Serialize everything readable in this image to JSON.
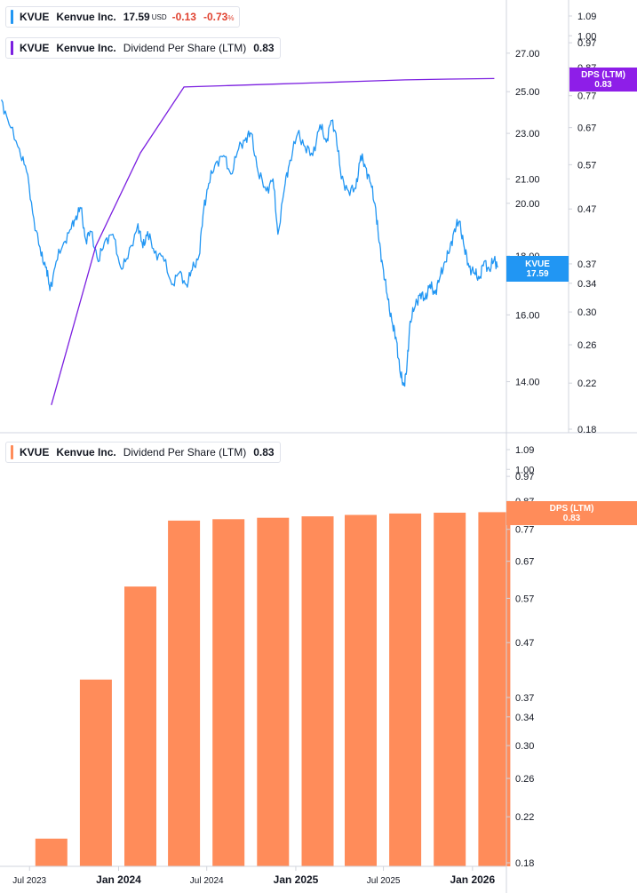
{
  "legend_top": {
    "ticker": "KVUE",
    "company": "Kenvue Inc.",
    "price": "17.59",
    "currency": "USD",
    "change": "-0.13",
    "change_pct": "-0.73",
    "pct_sign": "%",
    "color": "#2196f3"
  },
  "legend_dps_top": {
    "ticker": "KVUE",
    "company": "Kenvue Inc.",
    "metric": "Dividend Per Share (LTM)",
    "value": "0.83",
    "color": "#7b1fe0"
  },
  "legend_bottom": {
    "ticker": "KVUE",
    "company": "Kenvue Inc.",
    "metric": "Dividend Per Share (LTM)",
    "value": "0.83",
    "color": "#ff8c5a"
  },
  "price_tag": {
    "line1": "KVUE",
    "line2": "17.59",
    "color": "#2196f3"
  },
  "dps_tag_top": {
    "line1": "DPS (LTM)",
    "line2": "0.83",
    "color": "#8e1ee8"
  },
  "dps_tag_bottom": {
    "line1": "DPS (LTM)",
    "line2": "0.83",
    "color": "#ff8c5a"
  },
  "chart_data": [
    {
      "type": "line",
      "series": [
        {
          "name": "KVUE",
          "color": "#2196f3",
          "points": [
            [
              "2023-05-04",
              24.6
            ],
            [
              "2023-05-20",
              23.4
            ],
            [
              "2023-06-10",
              22.3
            ],
            [
              "2023-06-25",
              21.3
            ],
            [
              "2023-07-10",
              19.4
            ],
            [
              "2023-07-25",
              18.0
            ],
            [
              "2023-08-05",
              17.6
            ],
            [
              "2023-08-12",
              16.8
            ],
            [
              "2023-08-25",
              17.8
            ],
            [
              "2023-09-10",
              18.5
            ],
            [
              "2023-09-25",
              19.0
            ],
            [
              "2023-10-05",
              19.5
            ],
            [
              "2023-10-15",
              19.8
            ],
            [
              "2023-10-25",
              18.6
            ],
            [
              "2023-11-05",
              18.9
            ],
            [
              "2023-11-20",
              17.8
            ],
            [
              "2023-12-05",
              18.6
            ],
            [
              "2023-12-20",
              18.8
            ],
            [
              "2024-01-05",
              17.6
            ],
            [
              "2024-01-20",
              17.9
            ],
            [
              "2024-02-10",
              19.2
            ],
            [
              "2024-02-20",
              18.3
            ],
            [
              "2024-03-01",
              18.9
            ],
            [
              "2024-03-15",
              18.1
            ],
            [
              "2024-04-01",
              18.0
            ],
            [
              "2024-04-20",
              17.0
            ],
            [
              "2024-05-05",
              17.4
            ],
            [
              "2024-05-20",
              17.0
            ],
            [
              "2024-06-01",
              17.5
            ],
            [
              "2024-06-15",
              18.0
            ],
            [
              "2024-06-25",
              19.8
            ],
            [
              "2024-07-05",
              20.8
            ],
            [
              "2024-07-20",
              21.7
            ],
            [
              "2024-08-05",
              22.0
            ],
            [
              "2024-08-20",
              21.2
            ],
            [
              "2024-09-05",
              22.3
            ],
            [
              "2024-09-20",
              22.8
            ],
            [
              "2024-10-01",
              23.0
            ],
            [
              "2024-10-15",
              21.3
            ],
            [
              "2024-11-01",
              20.5
            ],
            [
              "2024-11-15",
              21.0
            ],
            [
              "2024-11-25",
              18.8
            ],
            [
              "2024-12-10",
              20.8
            ],
            [
              "2024-12-20",
              21.8
            ],
            [
              "2025-01-05",
              23.0
            ],
            [
              "2025-01-20",
              22.4
            ],
            [
              "2025-02-05",
              22.0
            ],
            [
              "2025-02-20",
              23.4
            ],
            [
              "2025-03-05",
              22.6
            ],
            [
              "2025-03-15",
              23.6
            ],
            [
              "2025-03-25",
              23.0
            ],
            [
              "2025-04-05",
              21.0
            ],
            [
              "2025-04-20",
              20.5
            ],
            [
              "2025-05-05",
              20.6
            ],
            [
              "2025-05-15",
              22.0
            ],
            [
              "2025-05-25",
              21.5
            ],
            [
              "2025-06-05",
              20.8
            ],
            [
              "2025-06-15",
              19.8
            ],
            [
              "2025-06-22",
              18.5
            ],
            [
              "2025-07-01",
              17.5
            ],
            [
              "2025-07-10",
              16.5
            ],
            [
              "2025-07-20",
              15.7
            ],
            [
              "2025-07-28",
              15.2
            ],
            [
              "2025-08-05",
              14.2
            ],
            [
              "2025-08-12",
              13.9
            ],
            [
              "2025-08-18",
              14.3
            ],
            [
              "2025-08-25",
              15.8
            ],
            [
              "2025-09-05",
              16.3
            ],
            [
              "2025-09-15",
              16.7
            ],
            [
              "2025-09-25",
              16.5
            ],
            [
              "2025-10-05",
              17.0
            ],
            [
              "2025-10-15",
              16.7
            ],
            [
              "2025-10-25",
              17.2
            ],
            [
              "2025-11-05",
              17.8
            ],
            [
              "2025-11-15",
              18.2
            ],
            [
              "2025-11-25",
              19.0
            ],
            [
              "2025-12-05",
              19.3
            ],
            [
              "2025-12-15",
              18.3
            ],
            [
              "2025-12-25",
              17.6
            ],
            [
              "2026-01-05",
              17.4
            ],
            [
              "2026-01-15",
              17.2
            ],
            [
              "2026-01-25",
              17.8
            ],
            [
              "2026-02-05",
              17.5
            ],
            [
              "2026-02-15",
              17.9
            ],
            [
              "2026-02-22",
              17.59
            ]
          ]
        },
        {
          "name": "Dividend Per Share (LTM)",
          "color": "#7b1fe0",
          "points": [
            [
              "2023-08-15",
              0.2
            ],
            [
              "2023-11-15",
              0.4
            ],
            [
              "2024-02-15",
              0.6
            ],
            [
              "2024-05-15",
              0.8
            ],
            [
              "2024-08-15",
              0.805
            ],
            [
              "2024-11-15",
              0.81
            ],
            [
              "2025-02-15",
              0.815
            ],
            [
              "2025-05-15",
              0.82
            ],
            [
              "2025-08-15",
              0.825
            ],
            [
              "2025-11-15",
              0.828
            ],
            [
              "2026-02-15",
              0.83
            ]
          ]
        }
      ],
      "y_axis_price": {
        "ticks": [
          "27.00",
          "25.00",
          "23.00",
          "21.00",
          "20.00",
          "18.00",
          "16.00",
          "14.00"
        ]
      },
      "y_axis_dps": {
        "ticks": [
          "1.09",
          "1.00",
          "0.97",
          "0.87",
          "0.77",
          "0.67",
          "0.57",
          "0.47",
          "0.37",
          "0.34",
          "0.30",
          "0.26",
          "0.22",
          "0.18"
        ]
      },
      "ylim_price": [
        12.8,
        29.5
      ],
      "ylim_dps": [
        0.18,
        1.09
      ],
      "scale": "log"
    },
    {
      "type": "bar",
      "title": "Dividend Per Share (LTM)",
      "categories": [
        "2023-08-15",
        "2023-11-15",
        "2024-02-15",
        "2024-05-15",
        "2024-08-15",
        "2024-11-15",
        "2025-02-15",
        "2025-05-15",
        "2025-08-15",
        "2025-11-15",
        "2026-02-15"
      ],
      "values": [
        0.2,
        0.4,
        0.6,
        0.8,
        0.805,
        0.81,
        0.815,
        0.82,
        0.825,
        0.828,
        0.83
      ],
      "color": "#ff8c5a",
      "y_axis": {
        "ticks": [
          "1.09",
          "1.00",
          "0.97",
          "0.87",
          "0.77",
          "0.67",
          "0.57",
          "0.47",
          "0.37",
          "0.34",
          "0.30",
          "0.26",
          "0.22",
          "0.18"
        ]
      },
      "ylim": [
        0.18,
        1.09
      ],
      "scale": "log"
    }
  ],
  "x_axis": {
    "ticks": [
      {
        "label": "Jul 2023",
        "date": "2023-07-01",
        "bold": false
      },
      {
        "label": "Jan 2024",
        "date": "2024-01-01",
        "bold": true
      },
      {
        "label": "Jul 2024",
        "date": "2024-07-01",
        "bold": false
      },
      {
        "label": "Jan 2025",
        "date": "2025-01-01",
        "bold": true
      },
      {
        "label": "Jul 2025",
        "date": "2025-07-01",
        "bold": false
      },
      {
        "label": "Jan 2026",
        "date": "2026-01-01",
        "bold": true
      }
    ]
  }
}
